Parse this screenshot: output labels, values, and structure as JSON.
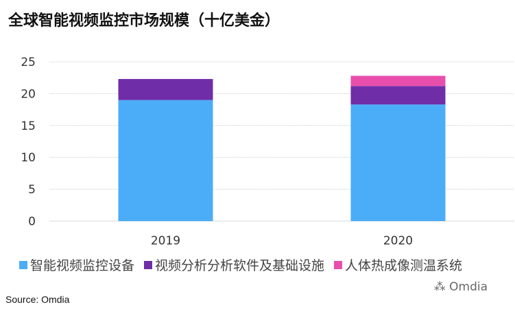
{
  "chart_data": {
    "type": "bar",
    "stacked": true,
    "title": "全球智能视频监控市场规模（十亿美金）",
    "categories": [
      "2019",
      "2020"
    ],
    "series": [
      {
        "name": "智能视频监控设备",
        "color": "#4badf7",
        "values": [
          19.0,
          18.3
        ]
      },
      {
        "name": "视频分析分析软件及基础设施",
        "color": "#6f2da8",
        "values": [
          3.3,
          2.9
        ]
      },
      {
        "name": "人体热成像测温系统",
        "color": "#e84fad",
        "values": [
          0,
          1.6
        ]
      }
    ],
    "ylim": [
      0,
      25
    ],
    "yticks": [
      "0",
      "5",
      "10",
      "15",
      "20",
      "25"
    ],
    "grid": true,
    "legend": "bottom"
  },
  "watermark": "Omdia",
  "source": "Source: Omdia"
}
